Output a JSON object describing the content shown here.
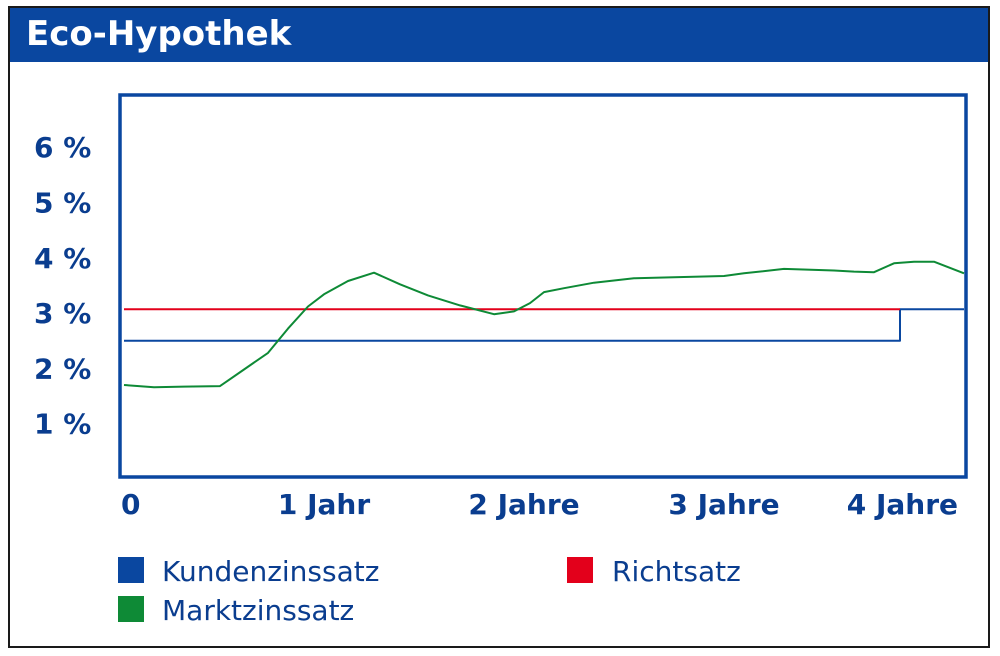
{
  "header": {
    "title": "Eco-Hypothek"
  },
  "colors": {
    "brand_blue": "#0a47a0",
    "axis_text": "#0a3d8f",
    "red": "#e3001b",
    "green": "#0e8a36"
  },
  "chart_data": {
    "type": "line",
    "title": "Eco-Hypothek",
    "xlabel": "",
    "ylabel": "",
    "xlim": [
      0,
      4.2
    ],
    "ylim": [
      0,
      7
    ],
    "x_ticks": [
      {
        "value": 0,
        "label": "0"
      },
      {
        "value": 1,
        "label": "1 Jahr"
      },
      {
        "value": 2,
        "label": "2 Jahre"
      },
      {
        "value": 3,
        "label": "3 Jahre"
      },
      {
        "value": 4,
        "label": "4 Jahre"
      }
    ],
    "y_ticks": [
      {
        "value": 1,
        "label": "1 %"
      },
      {
        "value": 2,
        "label": "2 %"
      },
      {
        "value": 3,
        "label": "3 %"
      },
      {
        "value": 4,
        "label": "4 %"
      },
      {
        "value": 5,
        "label": "5 %"
      },
      {
        "value": 6,
        "label": "6 %"
      }
    ],
    "legend_position": "bottom",
    "series": [
      {
        "name": "Kundenzinssatz",
        "color": "#0a47a0",
        "x": [
          0,
          3.88,
          3.88,
          4.2
        ],
        "y": [
          2.5,
          2.5,
          3.07,
          3.07
        ]
      },
      {
        "name": "Richtsatz",
        "color": "#e3001b",
        "x": [
          0,
          3.88
        ],
        "y": [
          3.07,
          3.07
        ]
      },
      {
        "name": "Marktzinssatz",
        "color": "#0e8a36",
        "x": [
          0,
          0.15,
          0.3,
          0.48,
          0.6,
          0.72,
          0.82,
          0.92,
          1.0,
          1.12,
          1.25,
          1.38,
          1.52,
          1.68,
          1.85,
          1.95,
          2.03,
          2.1,
          2.2,
          2.35,
          2.55,
          2.75,
          3.0,
          3.1,
          3.3,
          3.55,
          3.65,
          3.75,
          3.85,
          3.95,
          4.05,
          4.2
        ],
        "y": [
          1.7,
          1.66,
          1.67,
          1.68,
          1.98,
          2.28,
          2.72,
          3.12,
          3.34,
          3.58,
          3.73,
          3.52,
          3.32,
          3.14,
          2.98,
          3.03,
          3.18,
          3.38,
          3.45,
          3.55,
          3.63,
          3.65,
          3.67,
          3.72,
          3.8,
          3.77,
          3.75,
          3.74,
          3.9,
          3.93,
          3.93,
          3.72
        ]
      }
    ]
  }
}
